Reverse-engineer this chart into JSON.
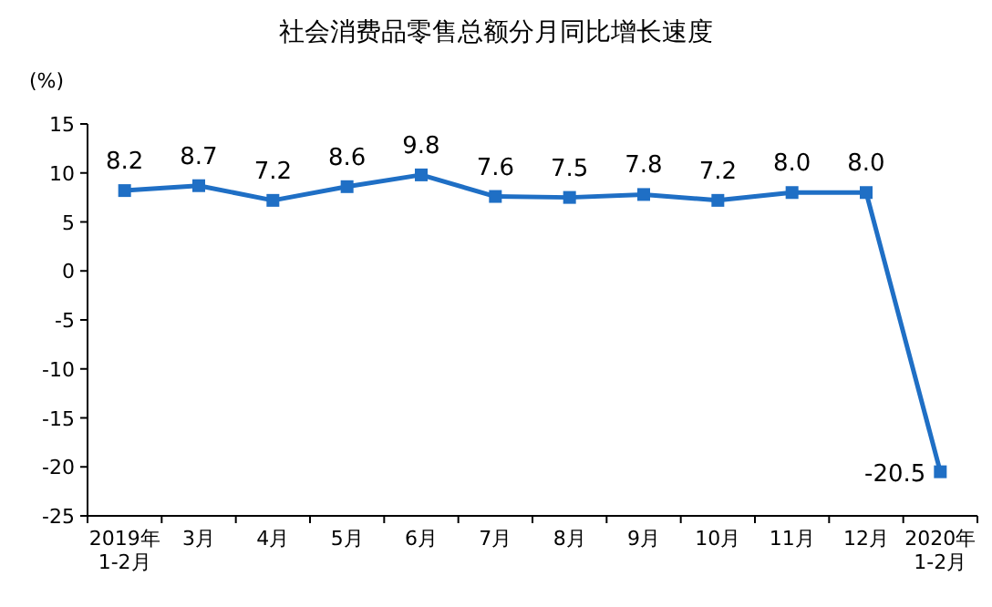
{
  "chart_data": {
    "type": "line",
    "title": "社会消费品零售总额分月同比增长速度",
    "ylabel": "(%)",
    "categories": [
      "2019年\n1-2月",
      "3月",
      "4月",
      "5月",
      "6月",
      "7月",
      "8月",
      "9月",
      "10月",
      "11月",
      "12月",
      "2020年\n1-2月"
    ],
    "series": [
      {
        "color": "#1f6fc5",
        "values": [
          8.2,
          8.7,
          7.2,
          8.6,
          9.8,
          7.6,
          7.5,
          7.8,
          7.2,
          8.0,
          8.0,
          -20.5
        ],
        "value_labels": [
          "8.2",
          "8.7",
          "7.2",
          "8.6",
          "9.8",
          "7.6",
          "7.5",
          "7.8",
          "7.2",
          "8.0",
          "8.0",
          "-20.5"
        ]
      }
    ],
    "ylim": [
      -25,
      15
    ],
    "yticks": [
      -25,
      -20,
      -15,
      -10,
      -5,
      0,
      5,
      10,
      15
    ],
    "marker": "square",
    "line_style": "solid",
    "grid": false
  }
}
